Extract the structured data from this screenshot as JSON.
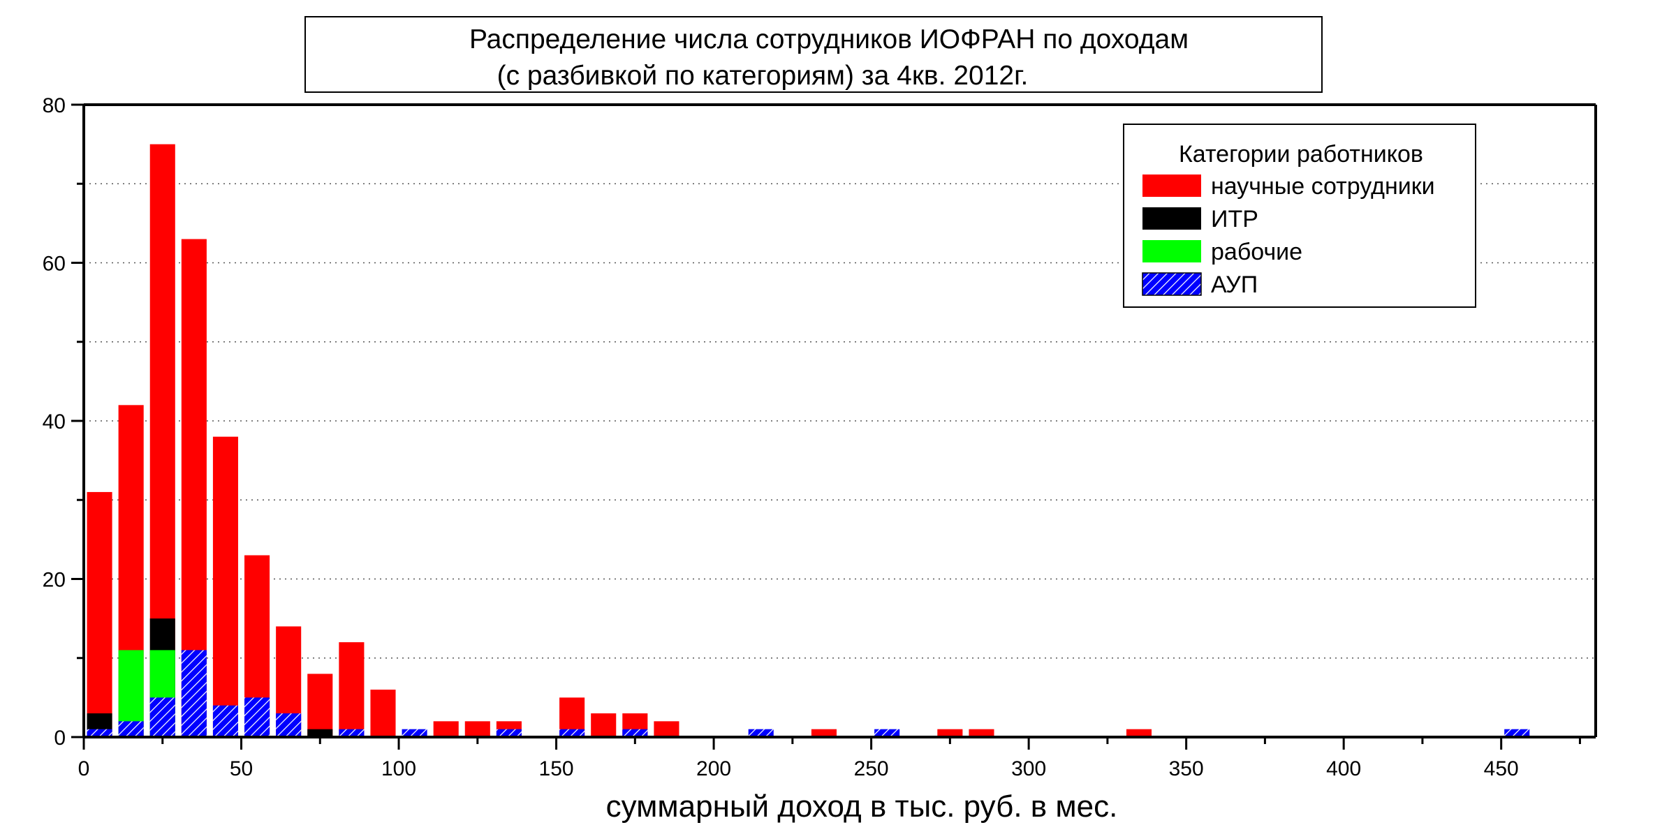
{
  "chart_data": {
    "type": "bar",
    "title": "Распределение числа сотрудников ИОФРАН по доходам",
    "subtitle": "(с разбивкой по категориям) за 4кв. 2012г.",
    "xlabel": "суммарный доход в тыс. руб. в мес.",
    "ylabel": "",
    "xlim": [
      0,
      480
    ],
    "ylim": [
      0,
      80
    ],
    "x_ticks": [
      "0",
      "50",
      "100",
      "150",
      "200",
      "250",
      "300",
      "350",
      "400",
      "450"
    ],
    "y_ticks": [
      "0",
      "20",
      "40",
      "60",
      "80"
    ],
    "grid": "horizontal-dotted",
    "legend": {
      "title": "Категории работников",
      "placement": "top-right"
    },
    "categories": [
      5,
      15,
      25,
      35,
      45,
      55,
      65,
      75,
      85,
      95,
      105,
      115,
      125,
      135,
      145,
      155,
      165,
      175,
      185,
      195,
      205,
      215,
      225,
      235,
      245,
      255,
      265,
      275,
      285,
      295,
      305,
      315,
      325,
      335,
      345,
      355,
      365,
      375,
      385,
      395,
      405,
      415,
      425,
      435,
      445,
      455
    ],
    "series": [
      {
        "name": "научные сотрудники",
        "color": "#ff0000",
        "pattern": "solid",
        "values": [
          31,
          42,
          75,
          63,
          38,
          23,
          14,
          8,
          12,
          6,
          0,
          2,
          2,
          2,
          0,
          5,
          3,
          3,
          2,
          0,
          0,
          0,
          0,
          1,
          0,
          0,
          0,
          1,
          1,
          0,
          0,
          0,
          0,
          1,
          0,
          0,
          0,
          0,
          0,
          0,
          0,
          0,
          0,
          0,
          0,
          0
        ]
      },
      {
        "name": "ИТР",
        "color": "#000000",
        "pattern": "solid",
        "values": [
          3,
          0,
          15,
          0,
          0,
          0,
          0,
          1,
          0,
          0,
          0,
          0,
          0,
          0,
          0,
          0,
          0,
          0,
          0,
          0,
          0,
          0,
          0,
          0,
          0,
          0,
          0,
          0,
          0,
          0,
          0,
          0,
          0,
          0,
          0,
          0,
          0,
          0,
          0,
          0,
          0,
          0,
          0,
          0,
          0,
          0
        ]
      },
      {
        "name": "рабочие",
        "color": "#00ff00",
        "pattern": "solid",
        "values": [
          0,
          11,
          11,
          0,
          0,
          0,
          0,
          0,
          0,
          0,
          0,
          0,
          0,
          0,
          0,
          0,
          0,
          0,
          0,
          0,
          0,
          0,
          0,
          0,
          0,
          0,
          0,
          0,
          0,
          0,
          0,
          0,
          0,
          0,
          0,
          0,
          0,
          0,
          0,
          0,
          0,
          0,
          0,
          0,
          0,
          0
        ]
      },
      {
        "name": "АУП",
        "color": "#0000ff",
        "pattern": "hatched",
        "values": [
          1,
          2,
          5,
          11,
          4,
          5,
          3,
          0,
          1,
          0,
          1,
          0,
          0,
          1,
          0,
          1,
          0,
          1,
          0,
          0,
          0,
          1,
          0,
          0,
          0,
          1,
          0,
          0,
          0,
          0,
          0,
          0,
          0,
          0,
          0,
          0,
          0,
          0,
          0,
          0,
          0,
          0,
          0,
          0,
          0,
          1
        ]
      }
    ]
  }
}
